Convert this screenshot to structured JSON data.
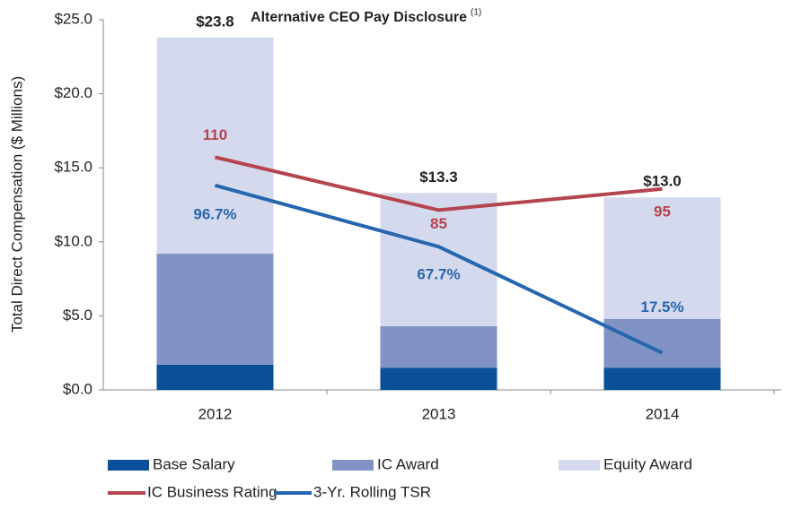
{
  "chart_data": {
    "type": "bar",
    "stacked": true,
    "title": "Alternative CEO Pay Disclosure",
    "title_note": "(1)",
    "y_label": "Total Direct Compensation ($ Millions)",
    "categories": [
      "2012",
      "2013",
      "2014"
    ],
    "ylim": [
      0,
      25
    ],
    "yticks": [
      {
        "value": 0,
        "label": "$0.0"
      },
      {
        "value": 5,
        "label": "$5.0"
      },
      {
        "value": 10,
        "label": "$10.0"
      },
      {
        "value": 15,
        "label": "$15.0"
      },
      {
        "value": 20,
        "label": "$20.0"
      },
      {
        "value": 25,
        "label": "$25.0"
      }
    ],
    "y2lim": [
      0,
      175
    ],
    "series": [
      {
        "name": "Base Salary",
        "color": "#0b4f98",
        "values": [
          1.7,
          1.5,
          1.5
        ]
      },
      {
        "name": "IC Award",
        "color": "#8193c5",
        "values": [
          7.5,
          2.8,
          3.3
        ]
      },
      {
        "name": "Equity Award",
        "color": "#d5d9ed",
        "values": [
          14.6,
          9.0,
          8.2
        ]
      },
      {
        "name": "IC Business Rating",
        "type": "line",
        "axis": "y2",
        "color": "#b4444e",
        "values": [
          110,
          85,
          95
        ]
      },
      {
        "name": "3-Yr. Rolling TSR",
        "type": "line",
        "axis": "y2",
        "color": "#2566b0",
        "values": [
          96.7,
          67.7,
          17.5
        ],
        "value_labels": [
          "96.7%",
          "67.7%",
          "17.5%"
        ]
      }
    ],
    "totals": [
      23.8,
      13.3,
      13.0
    ],
    "total_labels": [
      "$23.8",
      "$13.3",
      "$13.0"
    ]
  }
}
